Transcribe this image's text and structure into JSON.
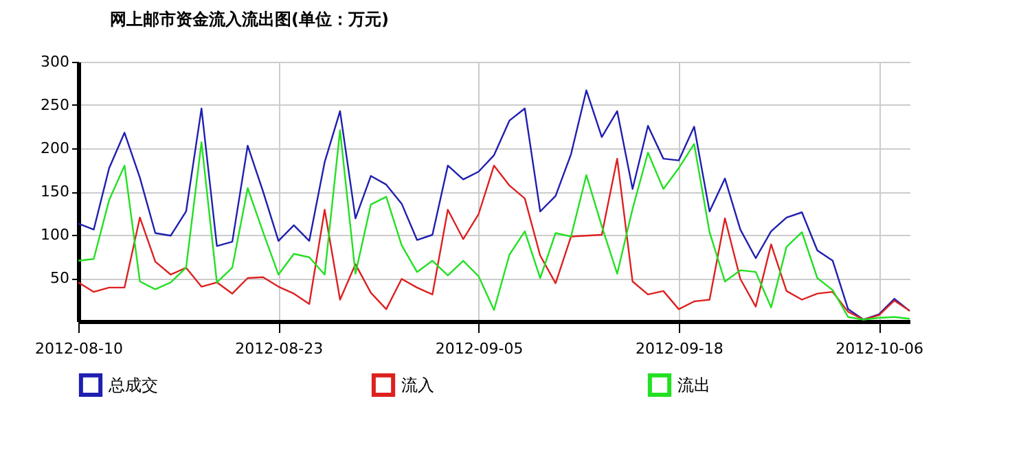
{
  "chart_data": {
    "type": "line",
    "title": "网上邮市资金流入流出图(单位：万元)",
    "categories": [
      "2012-08-10",
      null,
      null,
      null,
      null,
      null,
      null,
      null,
      null,
      null,
      null,
      null,
      null,
      "2012-08-23",
      null,
      null,
      null,
      null,
      null,
      null,
      null,
      null,
      null,
      null,
      null,
      null,
      "2012-09-05",
      null,
      null,
      null,
      null,
      null,
      null,
      null,
      null,
      null,
      null,
      null,
      null,
      "2012-09-18",
      null,
      null,
      null,
      null,
      null,
      null,
      null,
      null,
      null,
      null,
      null,
      null,
      "2012-10-06",
      null,
      null
    ],
    "series": [
      {
        "name": "总成交",
        "color": "#1f1fb0",
        "values": [
          113,
          106,
          177,
          218,
          166,
          102,
          99,
          127,
          246,
          87,
          92,
          203,
          150,
          93,
          111,
          93,
          184,
          243,
          119,
          168,
          158,
          136,
          94,
          100,
          180,
          164,
          173,
          192,
          232,
          246,
          127,
          145,
          193,
          267,
          213,
          243,
          153,
          226,
          188,
          186,
          225,
          127,
          165,
          106,
          73,
          104,
          120,
          126,
          82,
          70,
          14,
          2,
          8,
          26,
          12
        ]
      },
      {
        "name": "流入",
        "color": "#dd2020",
        "values": [
          45,
          34,
          39,
          39,
          120,
          69,
          54,
          62,
          40,
          45,
          32,
          50,
          51,
          40,
          32,
          20,
          129,
          25,
          66,
          33,
          14,
          49,
          39,
          31,
          129,
          95,
          124,
          180,
          157,
          142,
          76,
          44,
          98,
          99,
          100,
          188,
          46,
          31,
          35,
          14,
          23,
          25,
          119,
          49,
          17,
          89,
          35,
          25,
          32,
          34,
          11,
          2,
          7,
          24,
          12
        ]
      },
      {
        "name": "流出",
        "color": "#22e022",
        "values": [
          70,
          72,
          140,
          180,
          46,
          37,
          45,
          62,
          207,
          45,
          62,
          154,
          103,
          54,
          78,
          74,
          54,
          221,
          55,
          135,
          144,
          88,
          57,
          70,
          53,
          70,
          52,
          13,
          77,
          104,
          50,
          102,
          98,
          169,
          110,
          55,
          130,
          195,
          153,
          177,
          205,
          103,
          46,
          59,
          57,
          16,
          86,
          103,
          50,
          36,
          5,
          2,
          4,
          5,
          3
        ]
      }
    ],
    "ylim": [
      0,
      300
    ],
    "yticks": [
      50,
      100,
      150,
      200,
      250,
      300
    ],
    "grid": true,
    "legend": "bottom",
    "marker": "none",
    "line_style": "solid"
  }
}
